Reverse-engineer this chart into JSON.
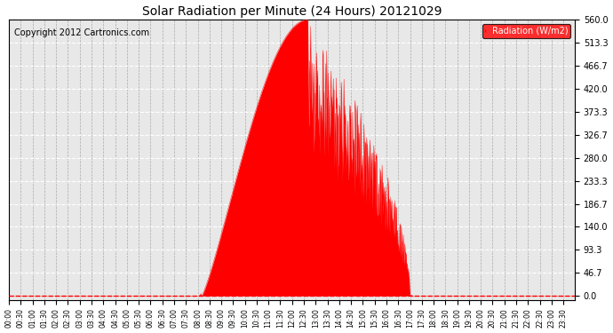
{
  "title": "Solar Radiation per Minute (24 Hours) 20121029",
  "copyright": "Copyright 2012 Cartronics.com",
  "legend_label": "Radiation (W/m2)",
  "fill_color": "#ff0000",
  "line_color": "#ff0000",
  "background_color": "#ffffff",
  "plot_bg_color": "#e8e8e8",
  "grid_color_x": "#aaaaaa",
  "grid_color_y": "#ffffff",
  "dashed_line_color": "#ff0000",
  "ylim": [
    0,
    560
  ],
  "yticks": [
    0.0,
    46.7,
    93.3,
    140.0,
    186.7,
    233.3,
    280.0,
    326.7,
    373.3,
    420.0,
    466.7,
    513.3,
    560.0
  ],
  "total_minutes": 1440,
  "x_tick_interval": 30,
  "sunrise_minute": 490,
  "sunset_minute": 1020,
  "peak_minute": 760,
  "peak_value": 560
}
